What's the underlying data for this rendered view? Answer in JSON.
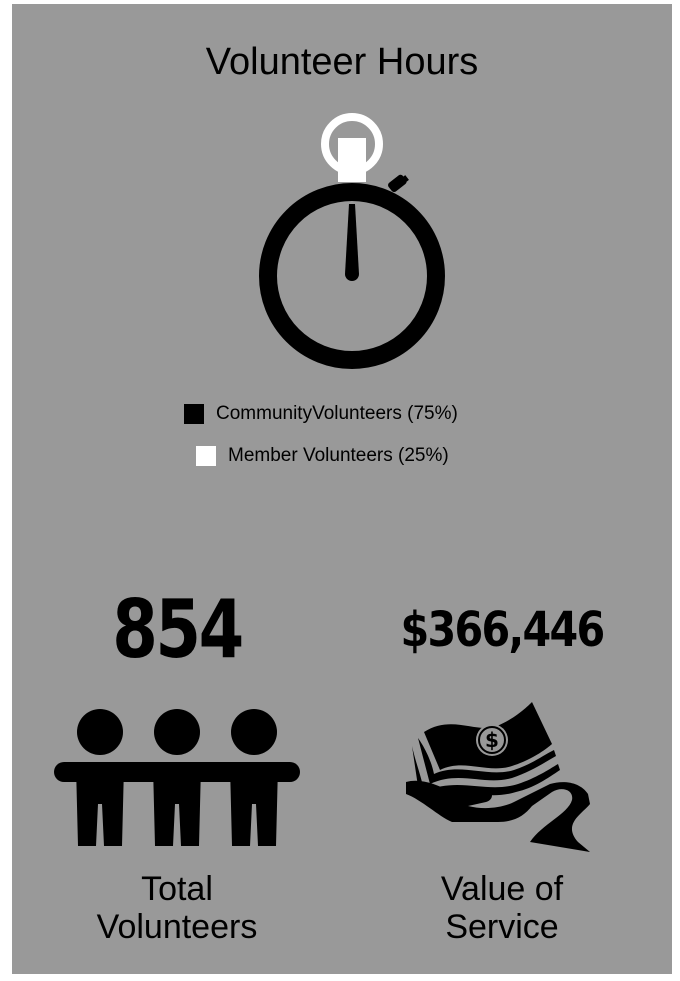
{
  "title": "Volunteer Hours",
  "chart_data": {
    "type": "pie",
    "categories": [
      "CommunityVolunteers",
      "Member Volunteers"
    ],
    "values": [
      75,
      25
    ],
    "legend_placement": "bottom",
    "colors": [
      "#000000",
      "#ffffff"
    ]
  },
  "legend": [
    {
      "label": "CommunityVolunteers (75%)",
      "color": "#000000"
    },
    {
      "label": "Member Volunteers (25%)",
      "color": "#ffffff"
    }
  ],
  "stats": {
    "total": {
      "number": "854",
      "label_line1": "Total",
      "label_line2": "Volunteers",
      "icon": "people-icon"
    },
    "value": {
      "number": "$366,446",
      "label_line1": "Value of",
      "label_line2": "Service",
      "icon": "money-hand-icon"
    }
  },
  "colors": {
    "background": "#999999",
    "foreground": "#000000"
  }
}
